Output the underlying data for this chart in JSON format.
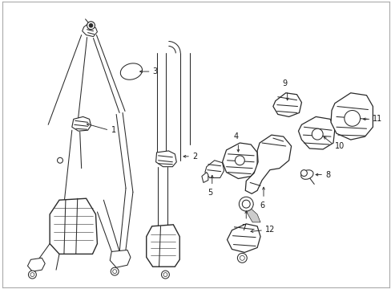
{
  "background_color": "#ffffff",
  "line_color": "#2a2a2a",
  "text_color": "#1a1a1a",
  "figsize": [
    4.89,
    3.6
  ],
  "dpi": 100,
  "border_color": "#aaaaaa",
  "lw": 0.75,
  "font_size": 7.0
}
